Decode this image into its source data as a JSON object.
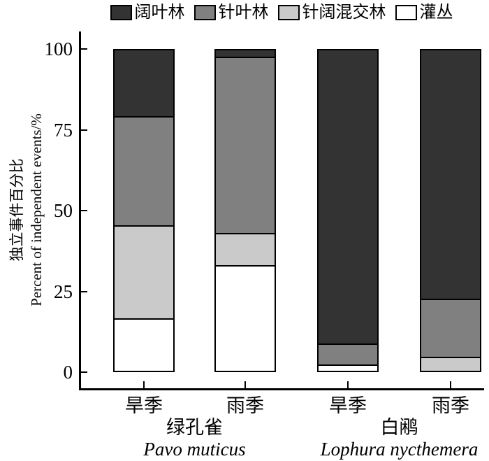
{
  "legend": {
    "position": "top",
    "items": [
      {
        "label": "阔叶林",
        "color": "#333333"
      },
      {
        "label": "针叶林",
        "color": "#808080"
      },
      {
        "label": "针阔混交林",
        "color": "#cacaca"
      },
      {
        "label": "灌丛",
        "color": "#ffffff"
      }
    ]
  },
  "y_axis": {
    "label_cn": "独立事件百分比",
    "label_en": "Percent of independent events/%",
    "ticks": [
      0,
      25,
      50,
      75,
      100
    ]
  },
  "x_axis": {
    "groups": [
      {
        "name_cn": "绿孔雀",
        "name_latin": "Pavo muticus",
        "seasons": [
          "旱季",
          "雨季"
        ]
      },
      {
        "name_cn": "白鹇",
        "name_latin": "Lophura nycthemera",
        "seasons": [
          "旱季",
          "雨季"
        ]
      }
    ]
  },
  "chart_data": {
    "type": "bar",
    "subtype": "stacked-percent",
    "title": "",
    "ylabel": "独立事件百分比 Percent of independent events/%",
    "ylim": [
      0,
      100
    ],
    "grid": false,
    "legend_position": "top",
    "categories": [
      "绿孔雀 旱季",
      "绿孔雀 雨季",
      "白鹇 旱季",
      "白鹇 雨季"
    ],
    "stack_order_top_to_bottom": [
      "阔叶林",
      "针叶林",
      "针阔混交林",
      "灌丛"
    ],
    "series": [
      {
        "name": "阔叶林",
        "color": "#333333",
        "values": [
          21,
          2.5,
          92,
          78
        ]
      },
      {
        "name": "针叶林",
        "color": "#808080",
        "values": [
          34,
          55,
          6.5,
          18
        ]
      },
      {
        "name": "针阔混交林",
        "color": "#cacaca",
        "values": [
          29,
          10,
          0,
          4
        ]
      },
      {
        "name": "灌丛",
        "color": "#ffffff",
        "values": [
          16,
          32.5,
          1.5,
          0
        ]
      }
    ]
  }
}
